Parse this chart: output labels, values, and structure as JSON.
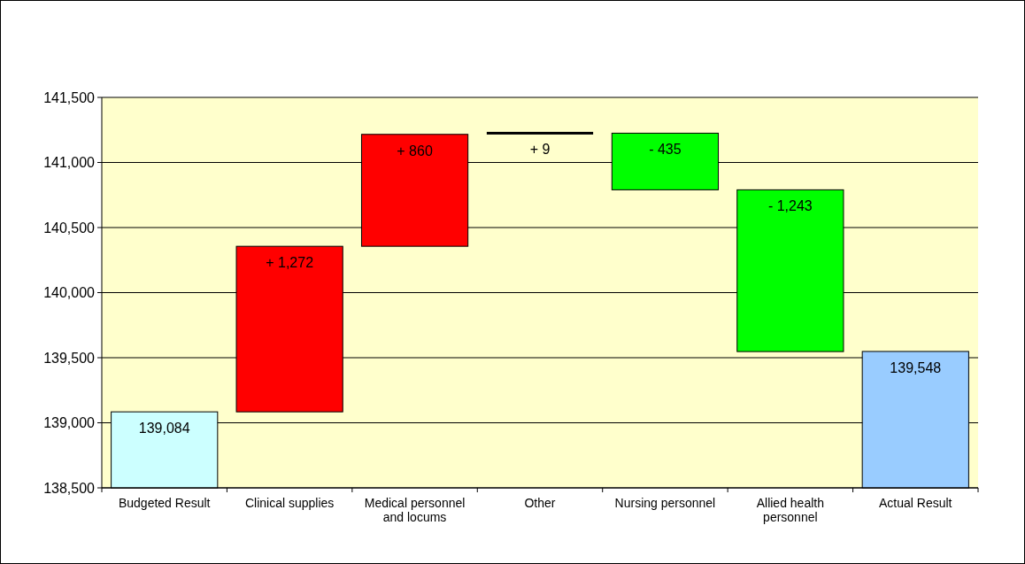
{
  "chart_data": {
    "type": "bar",
    "categories": [
      "Budgeted Result",
      "Clinical supplies",
      "Medical personnel and locums",
      "Other",
      "Nursing personnel",
      "Allied health personnel",
      "Actual Result"
    ],
    "values": [
      139084,
      1272,
      860,
      9,
      -435,
      -1243,
      139548
    ],
    "base": [
      null,
      139084,
      140356,
      141216,
      141225,
      140790,
      null
    ],
    "colors": [
      "#ccffff",
      "#ff0000",
      "#ff0000",
      "#000000",
      "#00ff00",
      "#00ff00",
      "#99ccff"
    ],
    "value_labels": [
      "139,084",
      "+ 1,272",
      "+ 860",
      "+ 9",
      "- 435",
      "- 1,243",
      "139,548"
    ],
    "ylim": [
      138500,
      141500
    ],
    "yticks": [
      {
        "value": 138500,
        "label": "138,500"
      },
      {
        "value": 139000,
        "label": "139,000"
      },
      {
        "value": 139500,
        "label": "139,500"
      },
      {
        "value": 140000,
        "label": "140,000"
      },
      {
        "value": 140500,
        "label": "140,500"
      },
      {
        "value": 141000,
        "label": "141,000"
      },
      {
        "value": 141500,
        "label": "141,500"
      }
    ],
    "grid": "y"
  }
}
